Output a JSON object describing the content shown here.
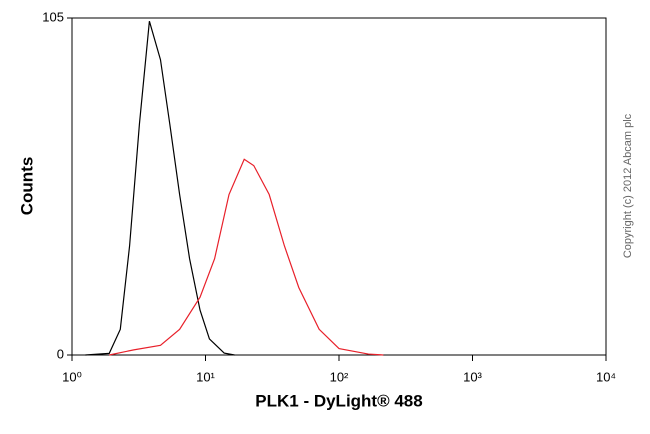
{
  "chart_data": {
    "type": "line",
    "xlabel": "PLK1 - DyLight® 488",
    "ylabel": "Counts",
    "watermark": "Copyright (c) 2012 Abcam plc",
    "xscale": "log",
    "xlim": [
      1,
      10000
    ],
    "xticks": [
      {
        "value": 1,
        "label": "10⁰"
      },
      {
        "value": 10,
        "label": "10¹"
      },
      {
        "value": 100,
        "label": "10²"
      },
      {
        "value": 1000,
        "label": "10³"
      },
      {
        "value": 10000,
        "label": "10⁴"
      }
    ],
    "ylim": [
      0,
      105
    ],
    "yticks": [
      0,
      105
    ],
    "series": [
      {
        "color": "#000000",
        "x": [
          1.26,
          1.9,
          2.3,
          2.7,
          3.2,
          3.8,
          4.6,
          5.4,
          6.4,
          7.6,
          9.1,
          10.7,
          13.8,
          16.5
        ],
        "values": [
          0,
          0.5,
          8,
          34,
          72,
          104,
          92,
          72,
          50,
          30,
          14,
          5,
          0.6,
          0
        ]
      },
      {
        "color": "#e8202a",
        "x": [
          1.9,
          2.9,
          4.6,
          6.4,
          9.1,
          11.7,
          15,
          19.5,
          23,
          30,
          39,
          50,
          71,
          100,
          166,
          215
        ],
        "values": [
          0,
          1.6,
          3,
          8,
          18,
          30,
          50,
          61,
          59,
          50,
          34,
          21,
          8,
          2,
          0.3,
          0
        ]
      }
    ]
  }
}
